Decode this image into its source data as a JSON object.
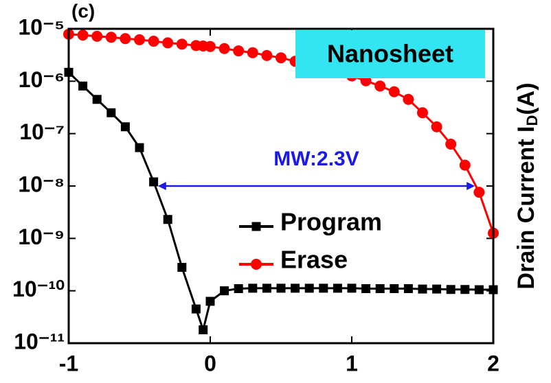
{
  "chart_data": {
    "type": "line",
    "panel_label": "(c)",
    "ylabel_parts": [
      "Drain Current I",
      "D",
      "(A)"
    ],
    "annotations": [
      {
        "text": "Nanosheet",
        "color": "#33e5f0"
      },
      {
        "text": "MW:2.3V",
        "color": "#1a1ae6",
        "x": [
          -0.37,
          1.87
        ],
        "y": 1e-08
      }
    ],
    "x": [
      -1,
      -0.9,
      -0.8,
      -0.7,
      -0.6,
      -0.5,
      -0.4,
      -0.3,
      -0.2,
      -0.1,
      -0.05,
      0,
      0.1,
      0.2,
      0.3,
      0.4,
      0.5,
      0.6,
      0.7,
      0.8,
      0.9,
      1.0,
      1.1,
      1.2,
      1.3,
      1.4,
      1.5,
      1.6,
      1.7,
      1.8,
      1.9,
      2.0
    ],
    "series": [
      {
        "name": "Program",
        "color": "#000000",
        "marker": "square",
        "values": [
          1.48e-06,
          8.1e-07,
          4.5e-07,
          2.5e-07,
          1.35e-07,
          5.4e-08,
          1.2e-08,
          2.3e-09,
          2.8e-10,
          4.5e-11,
          1.8e-11,
          6.3e-11,
          1e-10,
          1.1e-10,
          1.12e-10,
          1.12e-10,
          1.12e-10,
          1.12e-10,
          1.12e-10,
          1.12e-10,
          1.12e-10,
          1.12e-10,
          1.1e-10,
          1.1e-10,
          1.1e-10,
          1.1e-10,
          1.08e-10,
          1.08e-10,
          1.06e-10,
          1.06e-10,
          1.05e-10,
          1.05e-10
        ]
      },
      {
        "name": "Erase",
        "color": "#ff0000",
        "marker": "circle",
        "values": [
          7.9e-06,
          7.6e-06,
          7.2e-06,
          6.9e-06,
          6.5e-06,
          6.2e-06,
          5.8e-06,
          5.4e-06,
          5.1e-06,
          4.8e-06,
          4.7e-06,
          4.6e-06,
          4.2e-06,
          3.8e-06,
          3.5e-06,
          3.1e-06,
          2.8e-06,
          2.4e-06,
          2.1e-06,
          1.8e-06,
          1.5e-06,
          1.26e-06,
          1.02e-06,
          8.1e-07,
          6.3e-07,
          4.5e-07,
          2.5e-07,
          1.35e-07,
          6.3e-08,
          2.5e-08,
          7.6e-09,
          1.26e-09
        ]
      }
    ],
    "xlim": [
      -1,
      2
    ],
    "xticks": [
      -1,
      0,
      1,
      2
    ],
    "ylim": [
      1e-11,
      1e-05
    ],
    "log_y": true,
    "yticks": [
      {
        "value": 1e-05,
        "label": "10⁻⁵"
      },
      {
        "value": 1e-06,
        "label": "10⁻⁶"
      },
      {
        "value": 1e-07,
        "label": "10⁻⁷"
      },
      {
        "value": 1e-08,
        "label": "10⁻⁸"
      },
      {
        "value": 1e-09,
        "label": "10⁻⁹"
      },
      {
        "value": 1e-10,
        "label": "10⁻¹⁰"
      },
      {
        "value": 1e-11,
        "label": "10⁻¹¹"
      }
    ]
  }
}
